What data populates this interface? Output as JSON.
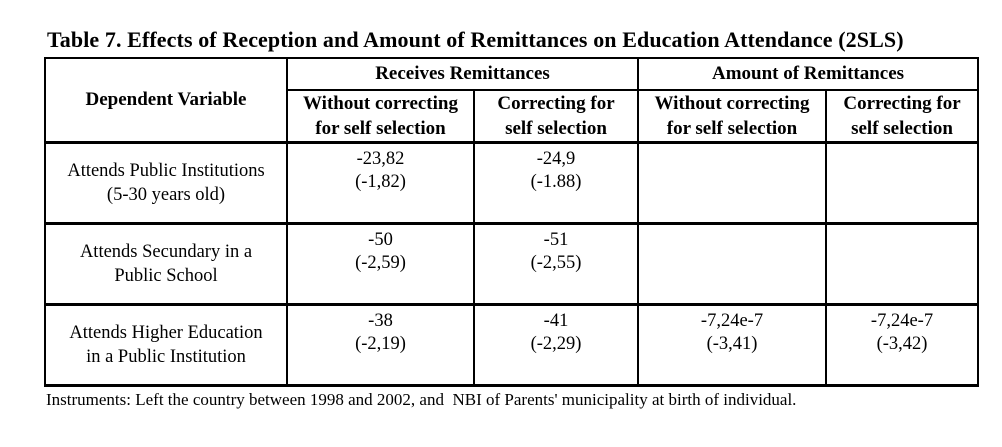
{
  "title": "Table 7. Effects of Reception and Amount of Remittances on Education Attendance (2SLS)",
  "table": {
    "corner_header": "Dependent Variable",
    "groups": [
      {
        "label": "Receives Remittances"
      },
      {
        "label": "Amount of Remittances"
      }
    ],
    "sub_headers": [
      {
        "line1": "Without correcting",
        "line2": "for self selection"
      },
      {
        "line1": "Correcting for",
        "line2": "self selection"
      },
      {
        "line1": "Without correcting",
        "line2": "for self selection"
      },
      {
        "line1": "Correcting for",
        "line2": "self selection"
      }
    ],
    "rows": [
      {
        "label_line1": "Attends Public Institutions",
        "label_line2": "(5-30 years old)",
        "cells": [
          {
            "value": "-23,82",
            "tstat": "(-1,82)"
          },
          {
            "value": "-24,9",
            "tstat": "(-1.88)"
          },
          {
            "value": "",
            "tstat": ""
          },
          {
            "value": "",
            "tstat": ""
          }
        ]
      },
      {
        "label_line1": "Attends Secundary in a",
        "label_line2": "Public School",
        "cells": [
          {
            "value": "-50",
            "tstat": "(-2,59)"
          },
          {
            "value": "-51",
            "tstat": "(-2,55)"
          },
          {
            "value": "",
            "tstat": ""
          },
          {
            "value": "",
            "tstat": ""
          }
        ]
      },
      {
        "label_line1": "Attends Higher Education",
        "label_line2": "in a Public Institution",
        "cells": [
          {
            "value": "-38",
            "tstat": "(-2,19)"
          },
          {
            "value": "-41",
            "tstat": "(-2,29)"
          },
          {
            "value": "-7,24e-7",
            "tstat": "(-3,41)"
          },
          {
            "value": "-7,24e-7",
            "tstat": "(-3,42)"
          }
        ]
      }
    ]
  },
  "footnote": "Instruments: Left the country between 1998 and 2002, and  NBI of Parents' municipality at birth of individual.",
  "colors": {
    "text": "#000000",
    "background": "#ffffff",
    "border": "#000000"
  }
}
